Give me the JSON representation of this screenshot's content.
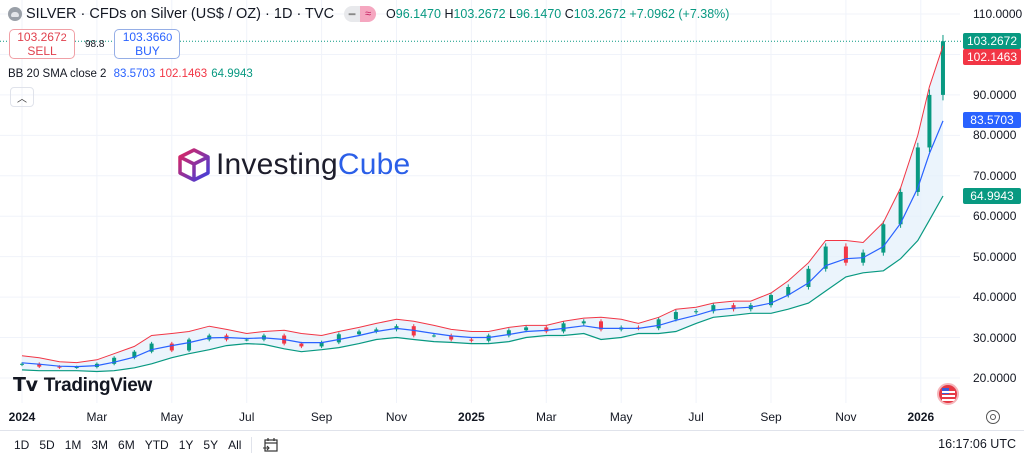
{
  "header": {
    "symbol": "SILVER",
    "title": "SILVER · CFDs on Silver (US$ / OZ) · 1D · TVC",
    "ohlc": {
      "o_label": "O",
      "o": "96.1470",
      "h_label": "H",
      "h": "103.2672",
      "l_label": "L",
      "l": "96.1470",
      "c_label": "C",
      "c": "103.2672",
      "change": "+7.0962 (+7.38%)"
    },
    "sell": {
      "price": "103.267",
      "price_sup": "2",
      "label": "SELL"
    },
    "spread": "98.8",
    "buy": {
      "price": "103.366",
      "price_sup": "0",
      "label": "BUY"
    }
  },
  "indicator": {
    "name": "BB",
    "params": "20 SMA close 2",
    "basis": "83.5703",
    "upper": "102.1463",
    "lower": "64.9943"
  },
  "watermarks": {
    "investingcube_a": "Investing",
    "investingcube_b": "Cube",
    "tradingview": "TradingView"
  },
  "price_tags": {
    "last": "103.2672",
    "upper": "102.1463",
    "basis": "83.5703",
    "lower": "64.9943"
  },
  "bottom_bar": {
    "ranges": [
      "1D",
      "5D",
      "1M",
      "3M",
      "6M",
      "YTD",
      "1Y",
      "5Y",
      "All"
    ],
    "clock": "16:17:06 UTC"
  },
  "icons": {
    "symbol": "silver-icon",
    "compare": "compare-icon",
    "collapse": "chevron-up-icon",
    "goto_date": "calendar-icon",
    "settings": "gear-icon",
    "economic_events": "us-flag-icon"
  },
  "colors": {
    "up": "#089981",
    "down": "#f23645",
    "basis": "#2962ff",
    "upper": "#f23645",
    "lower": "#089981",
    "band_fill": "#e3f0fb"
  },
  "chart_data": {
    "type": "candlestick",
    "title": "SILVER · CFDs on Silver (US$ / OZ) · 1D · TVC",
    "y_ticks": [
      "20.0000",
      "30.0000",
      "40.0000",
      "50.0000",
      "60.0000",
      "70.0000",
      "80.0000",
      "90.0000",
      "110.0000"
    ],
    "ylim": [
      15,
      112
    ],
    "x_ticks": [
      {
        "label": "2024",
        "date": "2024-01-01",
        "bold": true
      },
      {
        "label": "Mar",
        "date": "2024-03-01"
      },
      {
        "label": "May",
        "date": "2024-05-01"
      },
      {
        "label": "Jul",
        "date": "2024-07-01"
      },
      {
        "label": "Sep",
        "date": "2024-09-01"
      },
      {
        "label": "Nov",
        "date": "2024-11-01"
      },
      {
        "label": "2025",
        "date": "2025-01-01",
        "bold": true
      },
      {
        "label": "Mar",
        "date": "2025-03-01"
      },
      {
        "label": "May",
        "date": "2025-05-01"
      },
      {
        "label": "Jul",
        "date": "2025-07-01"
      },
      {
        "label": "Sep",
        "date": "2025-09-01"
      },
      {
        "label": "Nov",
        "date": "2025-11-01"
      },
      {
        "label": "2026",
        "date": "2026-01-01",
        "bold": true
      }
    ],
    "grid": true,
    "dates": [
      "2024-01-01",
      "2024-01-15",
      "2024-02-01",
      "2024-02-15",
      "2024-03-01",
      "2024-03-15",
      "2024-04-01",
      "2024-04-15",
      "2024-05-01",
      "2024-05-15",
      "2024-06-01",
      "2024-06-15",
      "2024-07-01",
      "2024-07-15",
      "2024-08-01",
      "2024-08-15",
      "2024-09-01",
      "2024-09-15",
      "2024-10-01",
      "2024-10-15",
      "2024-11-01",
      "2024-11-15",
      "2024-12-01",
      "2024-12-15",
      "2025-01-01",
      "2025-01-15",
      "2025-02-01",
      "2025-02-15",
      "2025-03-01",
      "2025-03-15",
      "2025-04-01",
      "2025-04-15",
      "2025-05-01",
      "2025-05-15",
      "2025-06-01",
      "2025-06-15",
      "2025-07-01",
      "2025-07-15",
      "2025-08-01",
      "2025-08-15",
      "2025-09-01",
      "2025-09-15",
      "2025-10-01",
      "2025-10-15",
      "2025-11-01",
      "2025-11-15",
      "2025-12-01",
      "2025-12-15",
      "2025-12-29",
      "2026-01-08",
      "2026-01-19"
    ],
    "close": [
      23.5,
      22.8,
      22.6,
      22.7,
      23.5,
      25.0,
      26.5,
      28.5,
      26.8,
      29.5,
      30.5,
      29.5,
      29.5,
      30.5,
      28.5,
      27.8,
      28.8,
      30.8,
      31.5,
      32.0,
      32.8,
      30.5,
      30.5,
      29.5,
      29.2,
      30.5,
      31.8,
      32.5,
      31.5,
      33.5,
      34.0,
      32.0,
      32.5,
      32.3,
      34.5,
      36.3,
      36.5,
      38.0,
      37.0,
      38.0,
      40.5,
      42.5,
      47.0,
      52.5,
      48.5,
      51.0,
      58.0,
      66.0,
      77.0,
      90.0,
      103.2672
    ],
    "bb_upper": [
      25.5,
      25.0,
      24.0,
      23.8,
      24.5,
      26.0,
      27.8,
      30.5,
      31.0,
      31.5,
      32.8,
      32.0,
      31.0,
      31.5,
      31.8,
      31.0,
      30.5,
      31.5,
      32.5,
      33.5,
      34.5,
      34.0,
      33.0,
      32.0,
      31.5,
      31.5,
      32.5,
      33.0,
      33.0,
      34.0,
      34.8,
      35.0,
      34.5,
      33.5,
      35.0,
      37.0,
      37.5,
      38.5,
      39.0,
      39.0,
      41.0,
      44.0,
      48.5,
      54.0,
      54.0,
      53.5,
      58.5,
      67.0,
      80.0,
      92.0,
      102.1463
    ],
    "bb_lower": [
      22.0,
      21.8,
      21.8,
      21.8,
      21.6,
      21.8,
      22.5,
      23.5,
      25.0,
      26.0,
      27.0,
      28.0,
      28.5,
      28.3,
      27.2,
      26.5,
      27.0,
      27.5,
      28.5,
      29.5,
      30.0,
      29.5,
      29.0,
      28.8,
      28.5,
      28.5,
      29.0,
      30.0,
      30.5,
      30.5,
      31.0,
      29.5,
      30.0,
      31.0,
      31.0,
      31.5,
      33.5,
      35.0,
      35.5,
      36.0,
      36.0,
      37.0,
      38.5,
      41.5,
      45.0,
      46.0,
      46.5,
      49.5,
      54.0,
      59.0,
      64.9943
    ]
  }
}
